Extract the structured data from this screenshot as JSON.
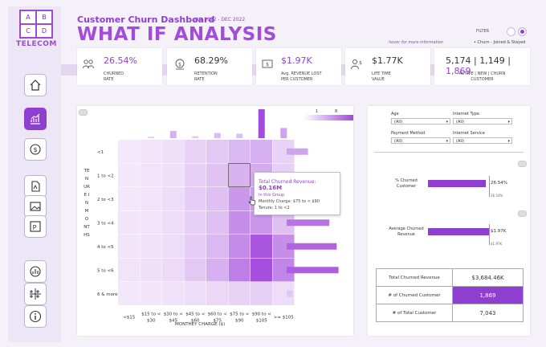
{
  "logo": {
    "letters": [
      "A",
      "B",
      "C",
      "D"
    ],
    "name": "TELECOM"
  },
  "header": {
    "title": "Customer Churn Dashboard",
    "date_range": "JAN 2022 - DEC 2022",
    "big_title": "WHAT IF ANALYSIS",
    "hover_info": "hover for more information",
    "filter_label": "FILTER",
    "legend": "• Churn  - Joined & Stayed"
  },
  "nav": {
    "icons": [
      "home-icon",
      "chart-icon",
      "money-icon",
      "pdf-icon",
      "image-icon",
      "powerpoint-icon",
      "tableau-icon",
      "info-icon",
      "more-icon"
    ]
  },
  "kpis": [
    {
      "value": "26.54%",
      "label": "CHURNED\nRATE"
    },
    {
      "value": "68.29%",
      "label": "RETENTION\nRATE"
    },
    {
      "value": "$1.97K",
      "label": "Avg. REVENUE LOST\nPER CUSTOMER"
    },
    {
      "value": "$1.77K",
      "label": "LIFE TIME\nVALUE"
    },
    {
      "value_parts": [
        "5,174",
        "1,149",
        "1,869"
      ],
      "label": "ACTIVE | NEW | CHURN\nCUSTOMER"
    }
  ],
  "heatmap": {
    "y_title": "TENURE IN MONTHS",
    "x_title": "MONTHEY CHARGE ($)",
    "rows": [
      "<1",
      "1 to <2",
      "2 to <3",
      "3 to <4",
      "4 to <5",
      "5 to <6",
      "6 & more"
    ],
    "cols": [
      "<$15",
      "$15 to < $30",
      "$30 to < $45",
      "$45 to < $60",
      "$60 to < $75",
      "$75 to < $90",
      "$90 to < $105",
      ">= $105"
    ],
    "cells": [
      [
        0.05,
        0.07,
        0.1,
        0.18,
        0.25,
        0.35,
        0.4,
        0.18
      ],
      [
        0.06,
        0.08,
        0.1,
        0.2,
        0.28,
        0.38,
        0.42,
        0.2
      ],
      [
        0.06,
        0.08,
        0.12,
        0.22,
        0.3,
        0.55,
        0.5,
        0.25
      ],
      [
        0.07,
        0.08,
        0.12,
        0.2,
        0.3,
        0.6,
        0.55,
        0.3
      ],
      [
        0.07,
        0.09,
        0.12,
        0.22,
        0.35,
        0.62,
        0.95,
        0.6
      ],
      [
        0.08,
        0.1,
        0.14,
        0.25,
        0.4,
        0.7,
        1.0,
        0.65
      ],
      [
        0.06,
        0.07,
        0.09,
        0.12,
        0.15,
        0.18,
        0.2,
        0.12
      ]
    ],
    "col_totals": [
      0.0,
      0.05,
      0.25,
      0.07,
      0.18,
      0.15,
      1.0,
      0.35
    ],
    "row_totals": [
      0.35,
      0.4,
      0.55,
      0.7,
      0.82,
      0.85,
      0.1
    ],
    "legend_min": "1",
    "legend_max": "8",
    "tooltip": {
      "title": "Total Churned Revenue:",
      "value": "$0.16M",
      "group": "In this Group",
      "charge": "Monthly Charge: $75 to < $90",
      "tenure": "Tenure: 1 to <2"
    }
  },
  "filters": {
    "age": {
      "label": "Age",
      "value": "(All)"
    },
    "internet_type": {
      "label": "Internet Type",
      "value": "(All)"
    },
    "payment_method": {
      "label": "Payment Method",
      "value": "(All)"
    },
    "internet_service": {
      "label": "Internet Service",
      "value": "(All)"
    }
  },
  "whatif": {
    "churned_pct": {
      "label": "% Churned\nCustomer",
      "value": "26.54%",
      "ref": "26.54%",
      "fraction": 0.72
    },
    "churned_rev": {
      "label": "Average Churned\nRevenue",
      "value": "$1.97K",
      "ref": "$1.97K",
      "fraction": 0.76
    }
  },
  "summary": [
    {
      "label": "Total Churned Revenue",
      "value": "$3,684.46K"
    },
    {
      "label": "# of Churned Customer",
      "value": "1,869"
    },
    {
      "label": "# of Total Customer",
      "value": "7,043"
    }
  ]
}
